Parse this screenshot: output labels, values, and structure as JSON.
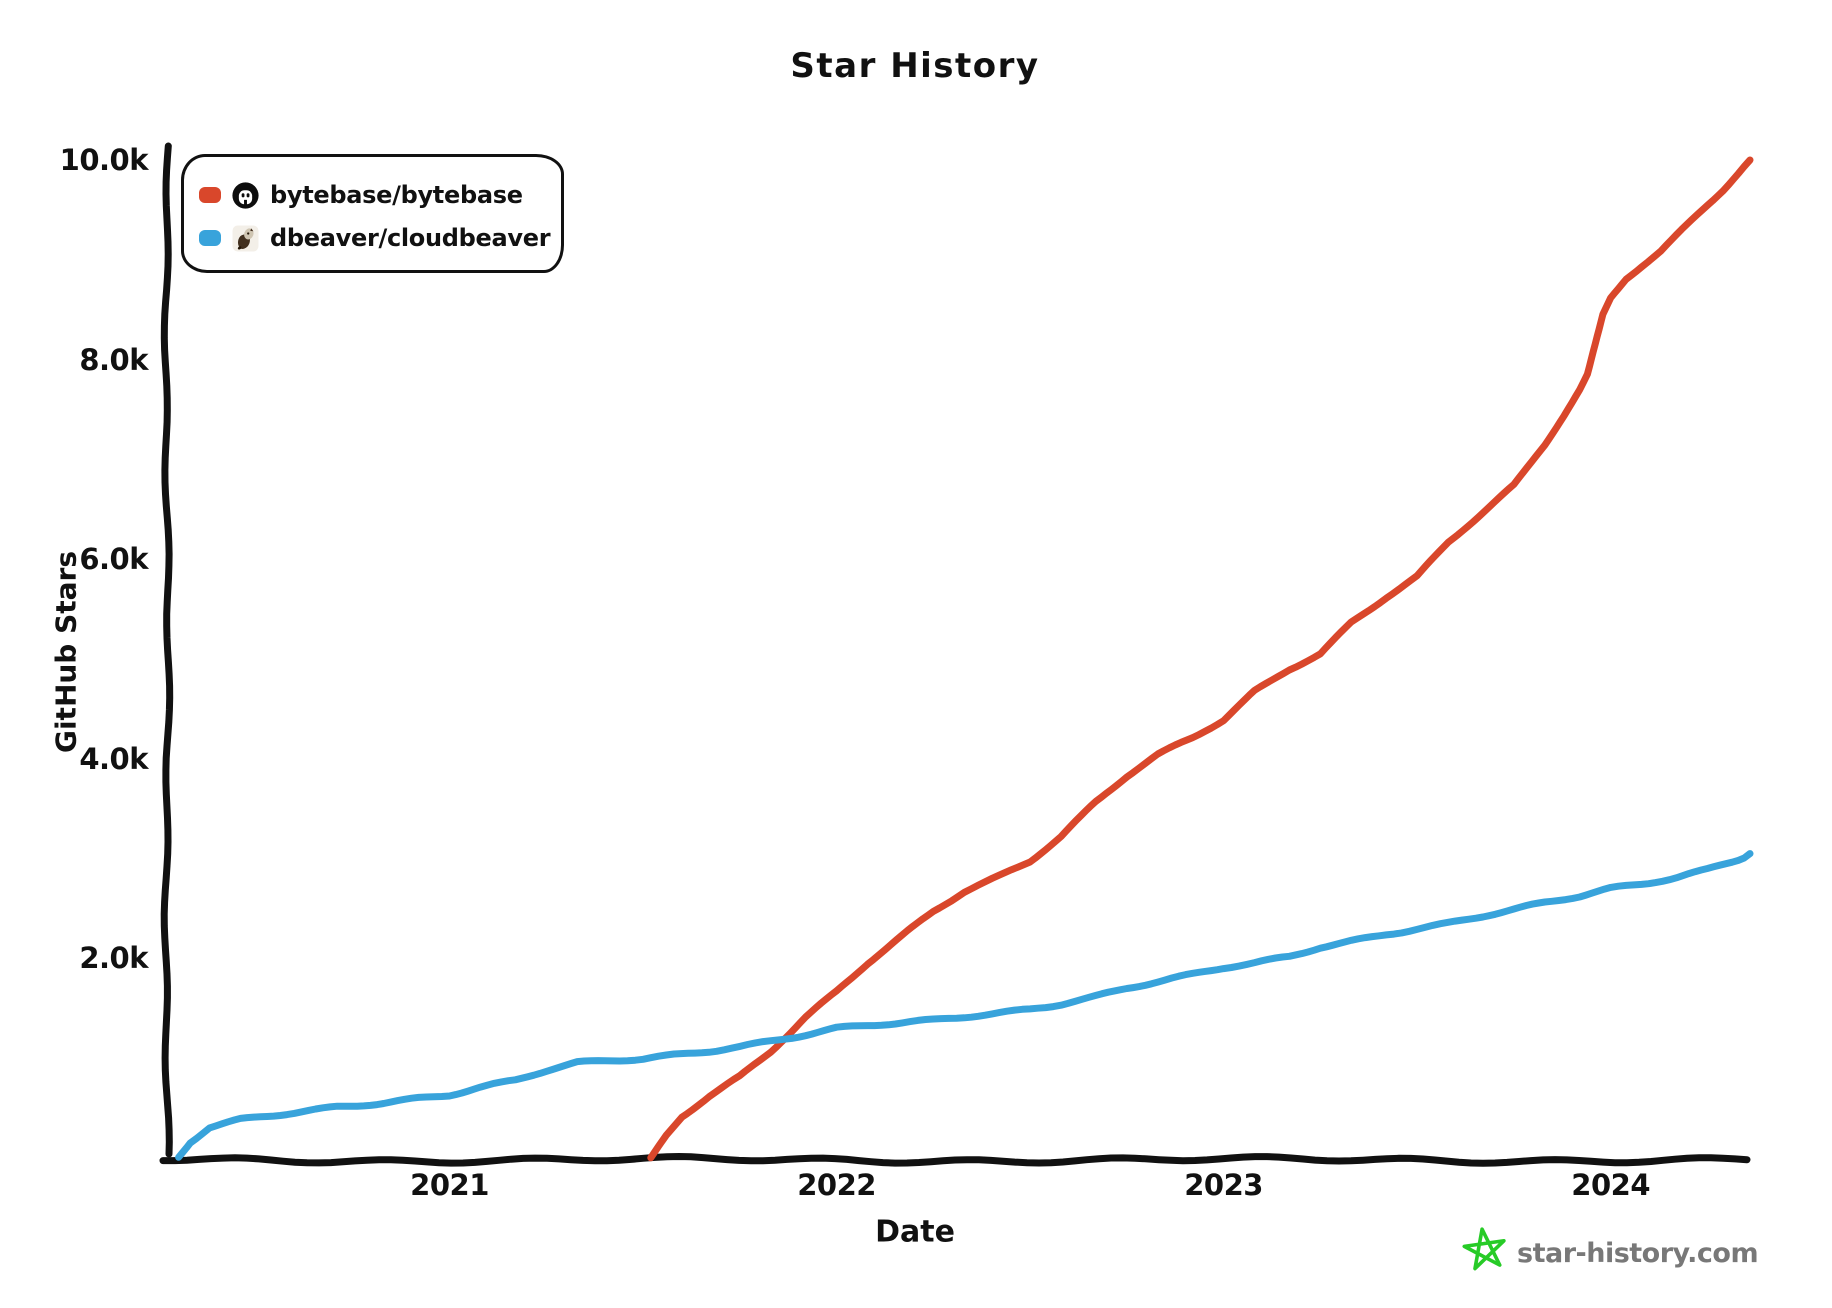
{
  "title": "Star History",
  "legend": {
    "items": [
      {
        "label": "bytebase/bytebase",
        "avatar": "bytebase-logo",
        "color": "#D9472B"
      },
      {
        "label": "dbeaver/cloudbeaver",
        "avatar": "dbeaver-beaver-logo",
        "color": "#38A3DB"
      }
    ]
  },
  "footer": {
    "brand": "star-history.com",
    "star_color": "#27CB27",
    "text_color": "#787878"
  },
  "chart_data": {
    "type": "line",
    "title": "Star History",
    "xlabel": "Date",
    "ylabel": "GitHub Stars",
    "grid": false,
    "legend_position": "top-left",
    "x_unit": "decimal_year",
    "x_range": [
      2020.27,
      2024.36
    ],
    "y_range": [
      0,
      10000
    ],
    "x_ticks": [
      {
        "label": "2021",
        "value": 2021
      },
      {
        "label": "2022",
        "value": 2022
      },
      {
        "label": "2023",
        "value": 2023
      },
      {
        "label": "2024",
        "value": 2024
      }
    ],
    "y_ticks": [
      {
        "label": "2.0k",
        "value": 2000
      },
      {
        "label": "4.0k",
        "value": 4000
      },
      {
        "label": "6.0k",
        "value": 6000
      },
      {
        "label": "8.0k",
        "value": 8000
      },
      {
        "label": "10.0k",
        "value": 10000
      }
    ],
    "series": [
      {
        "name": "bytebase/bytebase",
        "color": "#D9472B",
        "points": [
          [
            2021.52,
            0
          ],
          [
            2021.56,
            230
          ],
          [
            2021.6,
            420
          ],
          [
            2021.67,
            620
          ],
          [
            2021.75,
            810
          ],
          [
            2021.83,
            1060
          ],
          [
            2021.92,
            1400
          ],
          [
            2022.0,
            1660
          ],
          [
            2022.08,
            1950
          ],
          [
            2022.17,
            2230
          ],
          [
            2022.25,
            2480
          ],
          [
            2022.33,
            2680
          ],
          [
            2022.42,
            2830
          ],
          [
            2022.5,
            2980
          ],
          [
            2022.58,
            3220
          ],
          [
            2022.67,
            3560
          ],
          [
            2022.75,
            3820
          ],
          [
            2022.83,
            4030
          ],
          [
            2022.92,
            4210
          ],
          [
            2023.0,
            4390
          ],
          [
            2023.08,
            4680
          ],
          [
            2023.17,
            4910
          ],
          [
            2023.25,
            5060
          ],
          [
            2023.33,
            5370
          ],
          [
            2023.42,
            5620
          ],
          [
            2023.5,
            5820
          ],
          [
            2023.58,
            6160
          ],
          [
            2023.67,
            6460
          ],
          [
            2023.75,
            6730
          ],
          [
            2023.83,
            7150
          ],
          [
            2023.88,
            7450
          ],
          [
            2023.92,
            7700
          ],
          [
            2023.94,
            7850
          ],
          [
            2023.96,
            8150
          ],
          [
            2023.98,
            8450
          ],
          [
            2024.0,
            8620
          ],
          [
            2024.04,
            8820
          ],
          [
            2024.08,
            8950
          ],
          [
            2024.13,
            9100
          ],
          [
            2024.17,
            9250
          ],
          [
            2024.21,
            9400
          ],
          [
            2024.25,
            9550
          ],
          [
            2024.29,
            9700
          ],
          [
            2024.33,
            9870
          ],
          [
            2024.36,
            10000
          ]
        ]
      },
      {
        "name": "dbeaver/cloudbeaver",
        "color": "#38A3DB",
        "points": [
          [
            2020.3,
            0
          ],
          [
            2020.33,
            150
          ],
          [
            2020.38,
            300
          ],
          [
            2020.46,
            380
          ],
          [
            2020.58,
            450
          ],
          [
            2020.71,
            520
          ],
          [
            2020.83,
            560
          ],
          [
            2020.92,
            600
          ],
          [
            2021.0,
            630
          ],
          [
            2021.08,
            700
          ],
          [
            2021.17,
            770
          ],
          [
            2021.25,
            870
          ],
          [
            2021.33,
            950
          ],
          [
            2021.42,
            980
          ],
          [
            2021.5,
            1000
          ],
          [
            2021.58,
            1040
          ],
          [
            2021.67,
            1080
          ],
          [
            2021.75,
            1120
          ],
          [
            2021.83,
            1170
          ],
          [
            2021.92,
            1230
          ],
          [
            2022.0,
            1290
          ],
          [
            2022.08,
            1320
          ],
          [
            2022.17,
            1350
          ],
          [
            2022.25,
            1380
          ],
          [
            2022.33,
            1420
          ],
          [
            2022.42,
            1460
          ],
          [
            2022.5,
            1500
          ],
          [
            2022.58,
            1550
          ],
          [
            2022.67,
            1620
          ],
          [
            2022.75,
            1700
          ],
          [
            2022.83,
            1760
          ],
          [
            2022.92,
            1830
          ],
          [
            2023.0,
            1900
          ],
          [
            2023.08,
            1950
          ],
          [
            2023.17,
            2020
          ],
          [
            2023.25,
            2120
          ],
          [
            2023.33,
            2180
          ],
          [
            2023.42,
            2250
          ],
          [
            2023.5,
            2300
          ],
          [
            2023.58,
            2350
          ],
          [
            2023.67,
            2420
          ],
          [
            2023.75,
            2480
          ],
          [
            2023.83,
            2550
          ],
          [
            2023.92,
            2620
          ],
          [
            2024.0,
            2700
          ],
          [
            2024.08,
            2750
          ],
          [
            2024.17,
            2820
          ],
          [
            2024.25,
            2900
          ],
          [
            2024.33,
            3000
          ],
          [
            2024.36,
            3050
          ]
        ]
      }
    ]
  }
}
